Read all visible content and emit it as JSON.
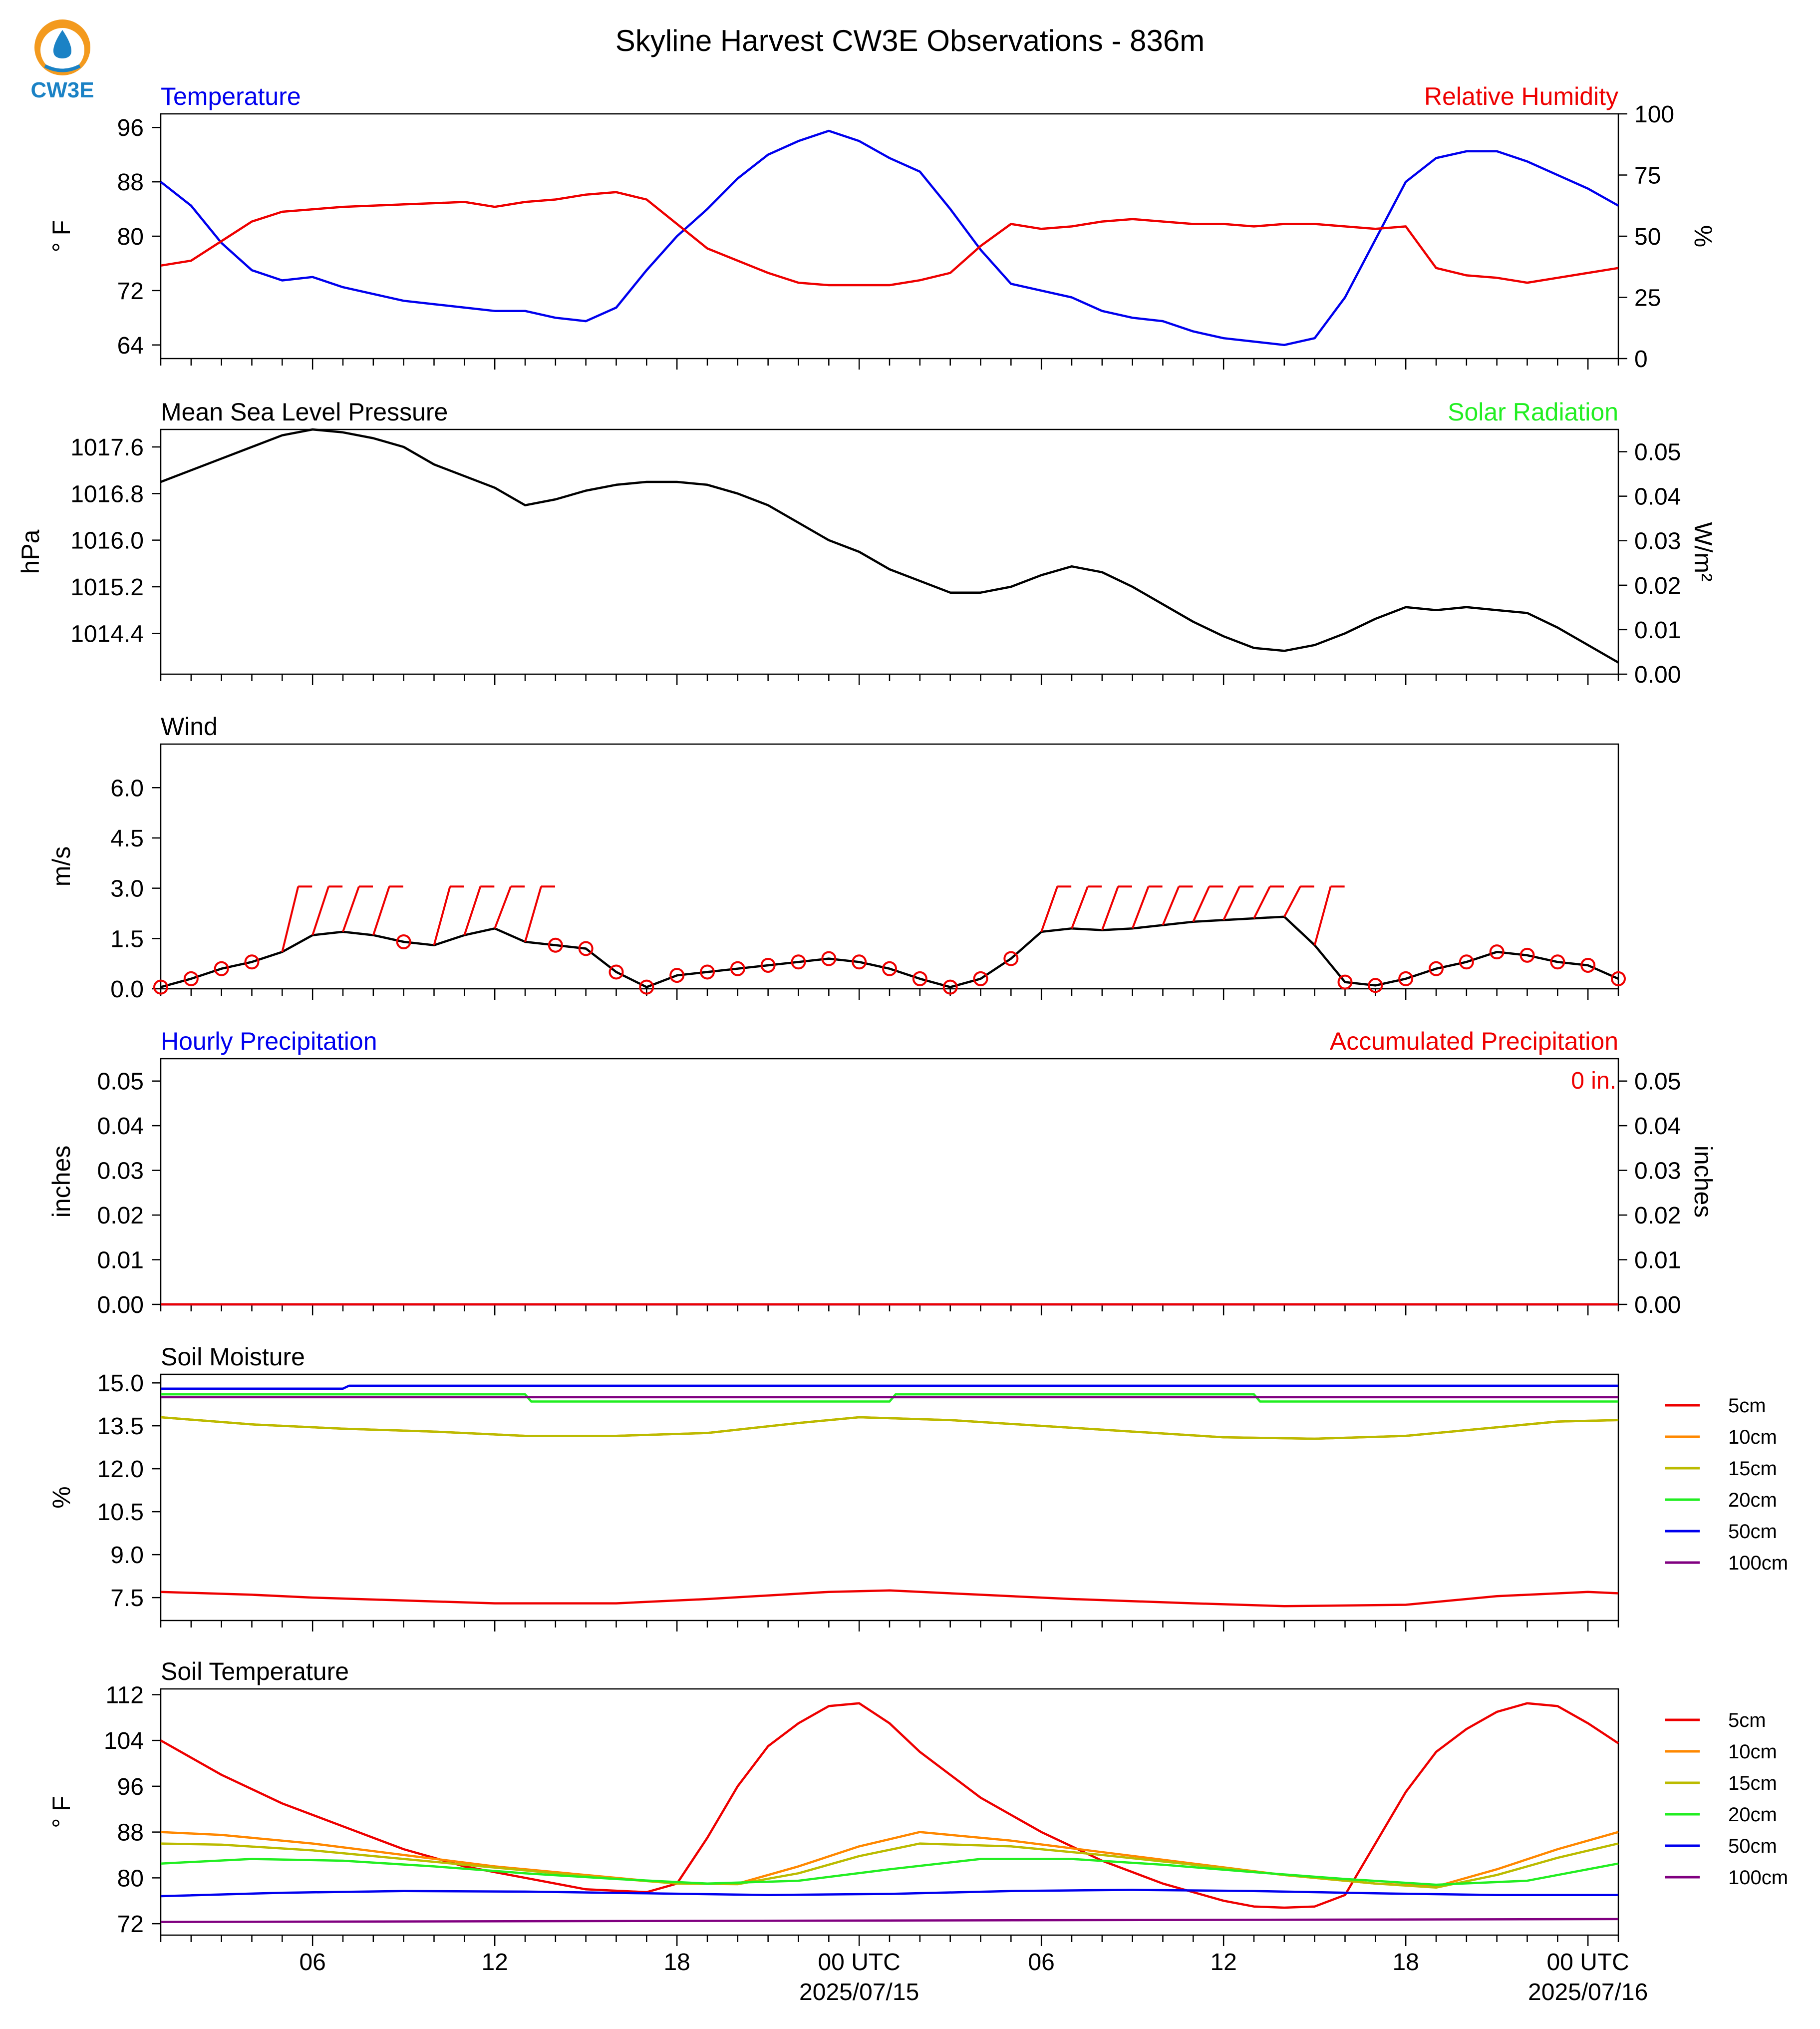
{
  "logo_text": "CW3E",
  "title": "Skyline Harvest CW3E Observations - 836m",
  "x_ticks": [
    {
      "h": 6,
      "label": "06"
    },
    {
      "h": 12,
      "label": "12"
    },
    {
      "h": 18,
      "label": "18"
    },
    {
      "h": 24,
      "label": "00 UTC",
      "sub": "2025/07/15"
    },
    {
      "h": 30,
      "label": "06"
    },
    {
      "h": 36,
      "label": "12"
    },
    {
      "h": 42,
      "label": "18"
    },
    {
      "h": 48,
      "label": "00 UTC",
      "sub": "2025/07/16"
    }
  ],
  "x_range_hours": [
    1,
    49
  ],
  "colors": {
    "blue": "#0000ee",
    "red": "#ee0000",
    "green": "#22ee22",
    "black": "#000000"
  },
  "chart_data": [
    {
      "id": "temp_rh",
      "type": "line",
      "title_left": "Temperature",
      "title_right": "Relative Humidity",
      "ylabel_left": "° F",
      "ylabel_right": "%",
      "ylim_left": [
        62,
        98
      ],
      "ylim_right": [
        0,
        100
      ],
      "yticks_left": [
        64,
        72,
        80,
        88,
        96
      ],
      "yticks_right": [
        0,
        25,
        50,
        75,
        100
      ],
      "series": [
        {
          "name": "Temperature",
          "axis": "left",
          "color": "#0000ee",
          "x": [
            1,
            2,
            3,
            4,
            5,
            6,
            7,
            8,
            9,
            10,
            11,
            12,
            13,
            14,
            15,
            16,
            17,
            18,
            19,
            20,
            21,
            22,
            23,
            24,
            25,
            26,
            27,
            28,
            29,
            30,
            31,
            32,
            33,
            34,
            35,
            36,
            37,
            38,
            39,
            40,
            41,
            42,
            43,
            44,
            45,
            46,
            47,
            48,
            49
          ],
          "y": [
            88,
            84.5,
            79,
            75,
            73.5,
            74,
            72.5,
            71.5,
            70.5,
            70,
            69.5,
            69,
            69,
            68,
            67.5,
            69.5,
            75,
            80,
            84,
            88.5,
            92,
            94,
            95.5,
            94,
            91.5,
            89.5,
            84,
            78,
            73,
            72,
            71,
            69,
            68,
            67.5,
            66,
            65,
            64.5,
            64,
            65,
            71,
            79.5,
            88,
            91.5,
            92.5,
            92.5,
            91,
            89,
            87,
            84.5
          ]
        },
        {
          "name": "Relative Humidity",
          "axis": "right",
          "color": "#ee0000",
          "x": [
            1,
            2,
            3,
            4,
            5,
            6,
            7,
            8,
            9,
            10,
            11,
            12,
            13,
            14,
            15,
            16,
            17,
            18,
            19,
            20,
            21,
            22,
            23,
            24,
            25,
            26,
            27,
            28,
            29,
            30,
            31,
            32,
            33,
            34,
            35,
            36,
            37,
            38,
            39,
            40,
            41,
            42,
            43,
            44,
            45,
            46,
            47,
            48,
            49
          ],
          "y": [
            38,
            40,
            48,
            56,
            60,
            61,
            62,
            62.5,
            63,
            63.5,
            64,
            62,
            64,
            65,
            67,
            68,
            65,
            55,
            45,
            40,
            35,
            31,
            30,
            30,
            30,
            32,
            35,
            46,
            55,
            53,
            54,
            56,
            57,
            56,
            55,
            55,
            54,
            55,
            55,
            54,
            53,
            54,
            37,
            34,
            33,
            31,
            33,
            35,
            37
          ]
        }
      ]
    },
    {
      "id": "pressure",
      "type": "line",
      "title_left": "Mean Sea Level Pressure",
      "title_right": "Solar Radiation",
      "ylabel_left": "hPa",
      "ylabel_right": "W/m²",
      "ylim_left": [
        1013.7,
        1017.9
      ],
      "ylim_right": [
        0,
        0.055
      ],
      "yticks_left": [
        1014.4,
        1015.2,
        1016.0,
        1016.8,
        1017.6
      ],
      "yticks_right": [
        0.0,
        0.01,
        0.02,
        0.03,
        0.04,
        0.05
      ],
      "series": [
        {
          "name": "Mean Sea Level Pressure",
          "axis": "left",
          "color": "#000000",
          "x": [
            1,
            2,
            3,
            4,
            5,
            6,
            7,
            8,
            9,
            10,
            11,
            12,
            13,
            14,
            15,
            16,
            17,
            18,
            19,
            20,
            21,
            22,
            23,
            24,
            25,
            26,
            27,
            28,
            29,
            30,
            31,
            32,
            33,
            34,
            35,
            36,
            37,
            38,
            39,
            40,
            41,
            42,
            43,
            44,
            45,
            46,
            47,
            48,
            49
          ],
          "y": [
            1017.0,
            1017.2,
            1017.4,
            1017.6,
            1017.8,
            1017.9,
            1017.85,
            1017.75,
            1017.6,
            1017.3,
            1017.1,
            1016.9,
            1016.6,
            1016.7,
            1016.85,
            1016.95,
            1017.0,
            1017.0,
            1016.95,
            1016.8,
            1016.6,
            1016.3,
            1016.0,
            1015.8,
            1015.5,
            1015.3,
            1015.1,
            1015.1,
            1015.2,
            1015.4,
            1015.55,
            1015.45,
            1015.2,
            1014.9,
            1014.6,
            1014.35,
            1014.15,
            1014.1,
            1014.2,
            1014.4,
            1014.65,
            1014.85,
            1014.8,
            1014.85,
            1014.8,
            1014.75,
            1014.5,
            1014.2,
            1013.9
          ]
        }
      ]
    },
    {
      "id": "wind",
      "type": "line",
      "title_left": "Wind",
      "ylabel_left": "m/s",
      "ylim_left": [
        0,
        7.3
      ],
      "yticks_left": [
        0.0,
        1.5,
        3.0,
        4.5,
        6.0
      ],
      "series": [
        {
          "name": "Wind speed",
          "axis": "left",
          "color": "#000000",
          "x": [
            1,
            2,
            3,
            4,
            5,
            6,
            7,
            8,
            9,
            10,
            11,
            12,
            13,
            14,
            15,
            16,
            17,
            18,
            19,
            20,
            21,
            22,
            23,
            24,
            25,
            26,
            27,
            28,
            29,
            30,
            31,
            32,
            33,
            34,
            35,
            36,
            37,
            38,
            39,
            40,
            41,
            42,
            43,
            44,
            45,
            46,
            47,
            48,
            49
          ],
          "y": [
            0.05,
            0.3,
            0.6,
            0.8,
            1.1,
            1.6,
            1.7,
            1.6,
            1.4,
            1.3,
            1.6,
            1.8,
            1.4,
            1.3,
            1.2,
            0.5,
            0.05,
            0.4,
            0.5,
            0.6,
            0.7,
            0.8,
            0.9,
            0.8,
            0.6,
            0.3,
            0.05,
            0.3,
            0.9,
            1.7,
            1.8,
            1.75,
            1.8,
            1.9,
            2.0,
            2.05,
            2.1,
            2.15,
            1.3,
            0.2,
            0.1,
            0.3,
            0.6,
            0.8,
            1.1,
            1.0,
            0.8,
            0.7,
            0.3
          ]
        }
      ],
      "barb_hours": [
        1,
        2,
        3,
        4,
        5,
        6,
        7,
        8,
        9,
        10,
        11,
        12,
        13,
        14,
        15,
        16,
        17,
        18,
        19,
        20,
        21,
        22,
        23,
        24,
        25,
        26,
        27,
        28,
        29,
        30,
        31,
        32,
        33,
        34,
        35,
        36,
        37,
        38,
        39,
        40,
        41,
        42,
        43,
        44,
        45,
        46,
        47,
        48,
        49
      ],
      "barb_kind": [
        "c",
        "c",
        "c",
        "c",
        "b",
        "b",
        "b",
        "b",
        "c",
        "b",
        "b",
        "b",
        "b",
        "c",
        "c",
        "c",
        "c",
        "c",
        "c",
        "c",
        "c",
        "c",
        "c",
        "c",
        "c",
        "c",
        "c",
        "c",
        "c",
        "b",
        "b",
        "b",
        "b",
        "b",
        "b",
        "b",
        "b",
        "b",
        "b",
        "c",
        "c",
        "c",
        "c",
        "c",
        "c",
        "c",
        "c",
        "c",
        "c"
      ],
      "barb_color": "#ee0000"
    },
    {
      "id": "precip",
      "type": "line",
      "title_left": "Hourly Precipitation",
      "title_right": "Accumulated Precipitation",
      "ylabel_left": "inches",
      "ylabel_right": "inches",
      "ylim_left": [
        0,
        0.055
      ],
      "ylim_right": [
        0,
        0.055
      ],
      "yticks_left": [
        0.0,
        0.01,
        0.02,
        0.03,
        0.04,
        0.05
      ],
      "yticks_right": [
        0.0,
        0.01,
        0.02,
        0.03,
        0.04,
        0.05
      ],
      "annotation": "0 in.",
      "series": [
        {
          "name": "Hourly Precipitation",
          "axis": "left",
          "color": "#0000ee",
          "x": [
            1,
            49
          ],
          "y": [
            0,
            0
          ]
        },
        {
          "name": "Accumulated Precipitation",
          "axis": "left",
          "color": "#ee0000",
          "x": [
            1,
            49
          ],
          "y": [
            0,
            0
          ]
        }
      ]
    },
    {
      "id": "soil_moisture",
      "type": "line",
      "title_left": "Soil Moisture",
      "ylabel_left": "%",
      "ylim_left": [
        6.7,
        15.3
      ],
      "yticks_left": [
        7.5,
        9.0,
        10.5,
        12.0,
        13.5,
        15.0
      ],
      "legend": "right",
      "series": [
        {
          "name": "5cm",
          "color": "#ee0000",
          "x": [
            1,
            4,
            6,
            9,
            12,
            16,
            19,
            23,
            25,
            28,
            31,
            35,
            38,
            42,
            45,
            48,
            49
          ],
          "y": [
            7.7,
            7.6,
            7.5,
            7.4,
            7.3,
            7.3,
            7.45,
            7.7,
            7.75,
            7.6,
            7.45,
            7.3,
            7.2,
            7.25,
            7.55,
            7.7,
            7.65
          ]
        },
        {
          "name": "10cm",
          "color": "#ff8800",
          "x": [
            1,
            4,
            7,
            10,
            13,
            16,
            19,
            22,
            24,
            27,
            30,
            33,
            36,
            39,
            42,
            45,
            47,
            49
          ],
          "y": [
            13.8,
            13.55,
            13.4,
            13.3,
            13.15,
            13.15,
            13.25,
            13.6,
            13.8,
            13.7,
            13.5,
            13.3,
            13.1,
            13.05,
            13.15,
            13.45,
            13.65,
            13.7
          ]
        },
        {
          "name": "15cm",
          "color": "#bbbb00",
          "x": [
            1,
            4,
            7,
            10,
            13,
            16,
            19,
            22,
            24,
            27,
            30,
            33,
            36,
            39,
            42,
            45,
            47,
            49
          ],
          "y": [
            13.8,
            13.55,
            13.4,
            13.3,
            13.15,
            13.15,
            13.25,
            13.6,
            13.8,
            13.7,
            13.5,
            13.3,
            13.1,
            13.05,
            13.15,
            13.45,
            13.65,
            13.7
          ]
        },
        {
          "name": "20cm",
          "color": "#22ee22",
          "x": [
            1,
            13,
            13.2,
            25,
            25.2,
            37,
            37.2,
            49
          ],
          "y": [
            14.6,
            14.6,
            14.35,
            14.35,
            14.6,
            14.6,
            14.35,
            14.35
          ]
        },
        {
          "name": "50cm",
          "color": "#0000ee",
          "x": [
            1,
            7,
            7.2,
            49
          ],
          "y": [
            14.8,
            14.8,
            14.9,
            14.9
          ]
        },
        {
          "name": "100cm",
          "color": "#800080",
          "x": [
            1,
            49
          ],
          "y": [
            14.5,
            14.5
          ]
        }
      ]
    },
    {
      "id": "soil_temperature",
      "type": "line",
      "title_left": "Soil Temperature",
      "ylabel_left": "° F",
      "ylim_left": [
        70,
        113
      ],
      "yticks_left": [
        72,
        80,
        88,
        96,
        104,
        112
      ],
      "legend": "right",
      "series": [
        {
          "name": "5cm",
          "color": "#ee0000",
          "x": [
            1,
            3,
            5,
            7,
            9,
            11,
            13,
            15,
            17,
            18,
            19,
            20,
            21,
            22,
            23,
            24,
            25,
            26,
            27,
            28,
            29,
            30,
            31,
            32,
            33,
            34,
            35,
            36,
            37,
            38,
            39,
            40,
            41,
            42,
            43,
            44,
            45,
            46,
            47,
            48,
            49
          ],
          "y": [
            104,
            98,
            93,
            89,
            85,
            82,
            80,
            78,
            77.5,
            79,
            87,
            96,
            103,
            107,
            110,
            110.5,
            107,
            102,
            98,
            94,
            91,
            88,
            85.5,
            83,
            81,
            79,
            77.5,
            76,
            75,
            74.8,
            75,
            77,
            86,
            95,
            102,
            106,
            109,
            110.5,
            110,
            107,
            103.5
          ]
        },
        {
          "name": "10cm",
          "color": "#ff8800",
          "x": [
            1,
            3,
            6,
            9,
            12,
            15,
            18,
            20,
            22,
            24,
            26,
            29,
            32,
            35,
            38,
            41,
            43,
            45,
            47,
            49
          ],
          "y": [
            88,
            87.5,
            86,
            84,
            82,
            80.5,
            79,
            79,
            82,
            85.5,
            88,
            86.5,
            84.5,
            82.5,
            80.5,
            79,
            78.5,
            81.5,
            85,
            88
          ]
        },
        {
          "name": "15cm",
          "color": "#bbbb00",
          "x": [
            1,
            3,
            6,
            9,
            12,
            15,
            18,
            20,
            22,
            24,
            26,
            29,
            32,
            35,
            38,
            41,
            43,
            45,
            47,
            49
          ],
          "y": [
            86,
            85.8,
            84.8,
            83.3,
            81.8,
            80.3,
            79,
            78.9,
            80.8,
            83.8,
            86,
            85.5,
            84,
            82.3,
            80.5,
            79,
            78.3,
            80.5,
            83.5,
            86
          ]
        },
        {
          "name": "20cm",
          "color": "#22ee22",
          "x": [
            1,
            4,
            7,
            10,
            13,
            16,
            19,
            22,
            25,
            28,
            31,
            34,
            37,
            40,
            43,
            46,
            49
          ],
          "y": [
            82.5,
            83.3,
            83,
            82,
            80.8,
            79.8,
            79,
            79.5,
            81.5,
            83.3,
            83.3,
            82.3,
            81,
            79.8,
            78.8,
            79.5,
            82.5
          ]
        },
        {
          "name": "50cm",
          "color": "#0000ee",
          "x": [
            1,
            5,
            9,
            13,
            17,
            21,
            25,
            29,
            33,
            37,
            41,
            45,
            49
          ],
          "y": [
            76.8,
            77.4,
            77.7,
            77.6,
            77.3,
            77,
            77.2,
            77.7,
            77.9,
            77.7,
            77.3,
            77,
            77
          ]
        },
        {
          "name": "100cm",
          "color": "#800080",
          "x": [
            1,
            49
          ],
          "y": [
            72.3,
            72.8
          ]
        }
      ]
    }
  ]
}
